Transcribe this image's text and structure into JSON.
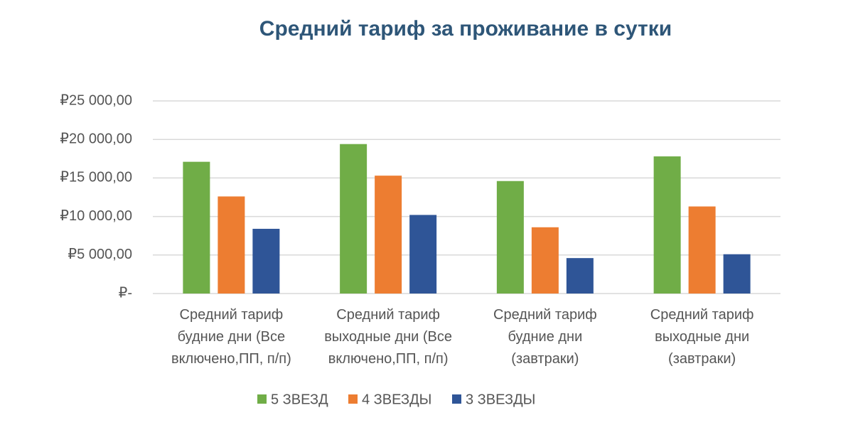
{
  "chart_data": {
    "type": "bar",
    "title": "Средний тариф за проживание в сутки",
    "categories": [
      "Средний тариф будние дни (Все включено,ПП, п/п)",
      "Средний тариф выходные дни (Все включено,ПП, п/п)",
      "Средний тариф будние дни (завтраки)",
      "Средний тариф выходные дни (завтраки)"
    ],
    "series": [
      {
        "name": "5 ЗВЕЗД",
        "color": "#70ad47",
        "values": [
          17100,
          19400,
          14600,
          17800
        ]
      },
      {
        "name": "4 ЗВЕЗДЫ",
        "color": "#ed7d31",
        "values": [
          12600,
          15300,
          8600,
          11300
        ]
      },
      {
        "name": "3 ЗВЕЗДЫ",
        "color": "#2f5597",
        "values": [
          8400,
          10200,
          4600,
          5100
        ]
      }
    ],
    "ylim": [
      0,
      25000
    ],
    "yticks": [
      {
        "value": 0,
        "label": "₽-"
      },
      {
        "value": 5000,
        "label": "₽5 000,00"
      },
      {
        "value": 10000,
        "label": "₽10 000,00"
      },
      {
        "value": 15000,
        "label": "₽15 000,00"
      },
      {
        "value": 20000,
        "label": "₽20 000,00"
      },
      {
        "value": 25000,
        "label": "₽25 000,00"
      }
    ],
    "grid": true,
    "legend": "bottom"
  }
}
